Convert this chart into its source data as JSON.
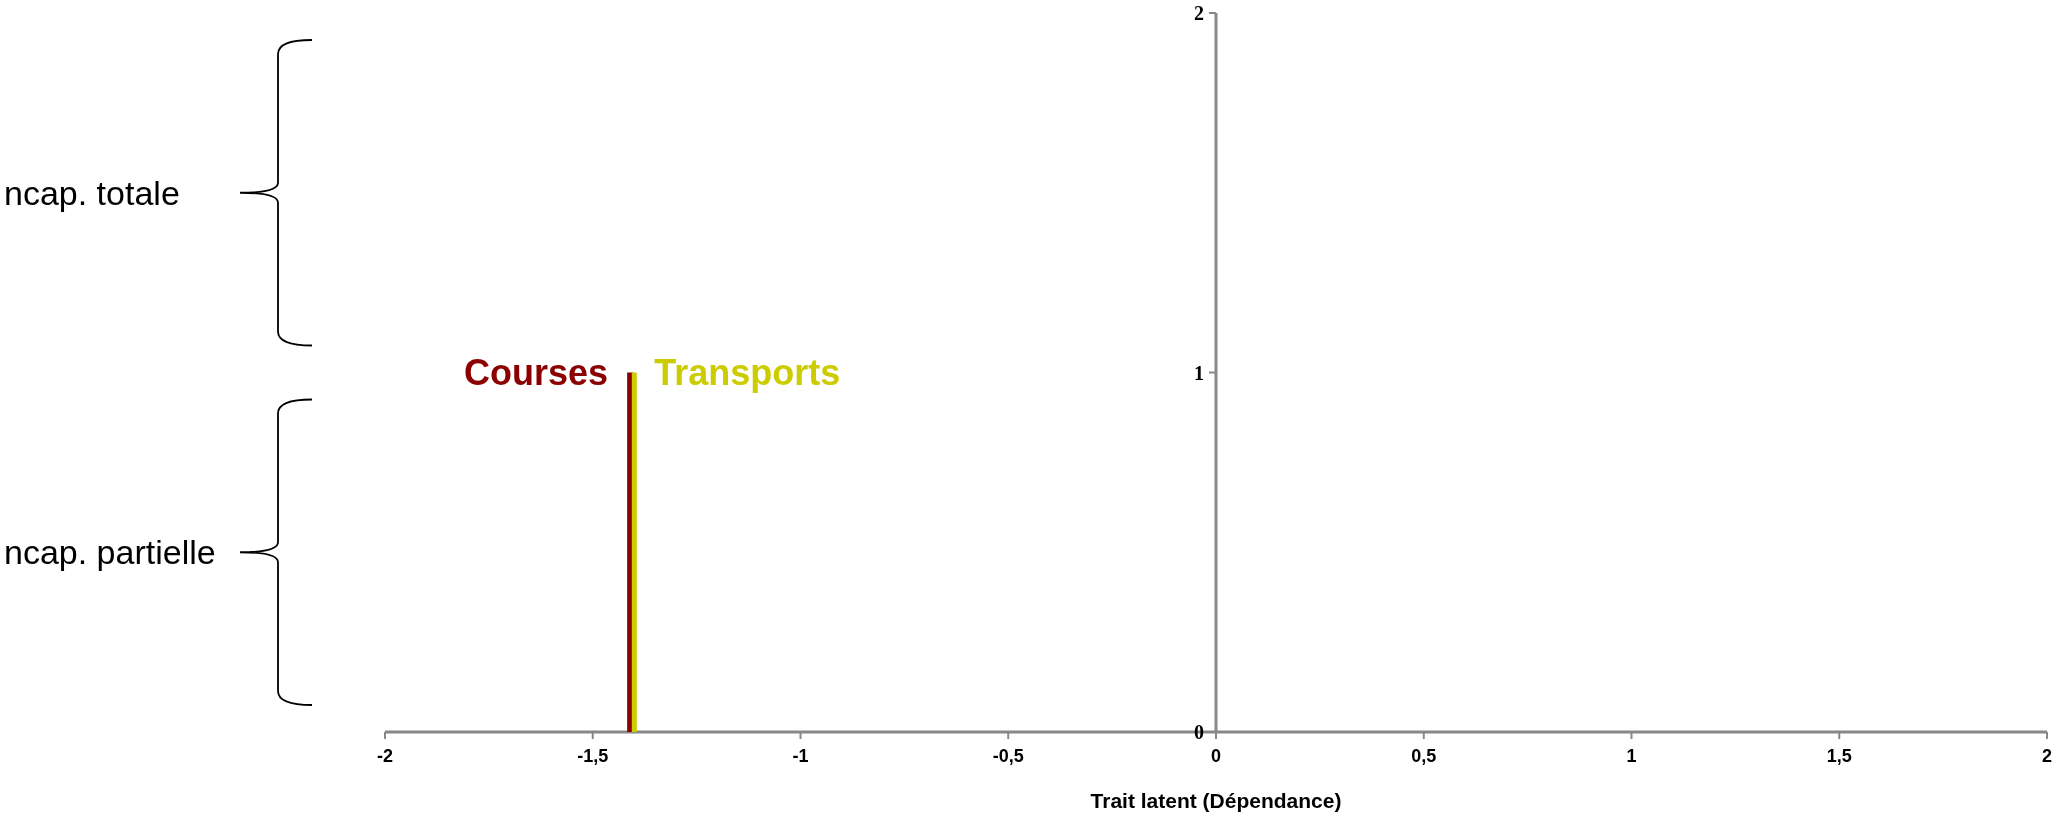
{
  "chart_data": {
    "type": "bar",
    "xlabel": "Trait latent (Dépendance)",
    "xlim": [
      -2,
      2
    ],
    "xticks": [
      {
        "value": -2,
        "label": "-2"
      },
      {
        "value": -1.5,
        "label": "-1,5"
      },
      {
        "value": -1,
        "label": "-1"
      },
      {
        "value": -0.5,
        "label": "-0,5"
      },
      {
        "value": 0,
        "label": "0"
      },
      {
        "value": 0.5,
        "label": "0,5"
      },
      {
        "value": 1,
        "label": "1"
      },
      {
        "value": 1.5,
        "label": "1,5"
      },
      {
        "value": 2,
        "label": "2"
      }
    ],
    "ylim": [
      0,
      2
    ],
    "yticks": [
      0,
      1,
      2
    ],
    "annotations": [
      "ncap. totale",
      "ncap. partielle"
    ],
    "series": [
      {
        "name": "Courses",
        "color": "#8b0000",
        "x": [
          -1.41
        ],
        "values": [
          1
        ]
      },
      {
        "name": "Transports",
        "color": "#cccc00",
        "x": [
          -1.4
        ],
        "values": [
          1
        ]
      }
    ]
  }
}
